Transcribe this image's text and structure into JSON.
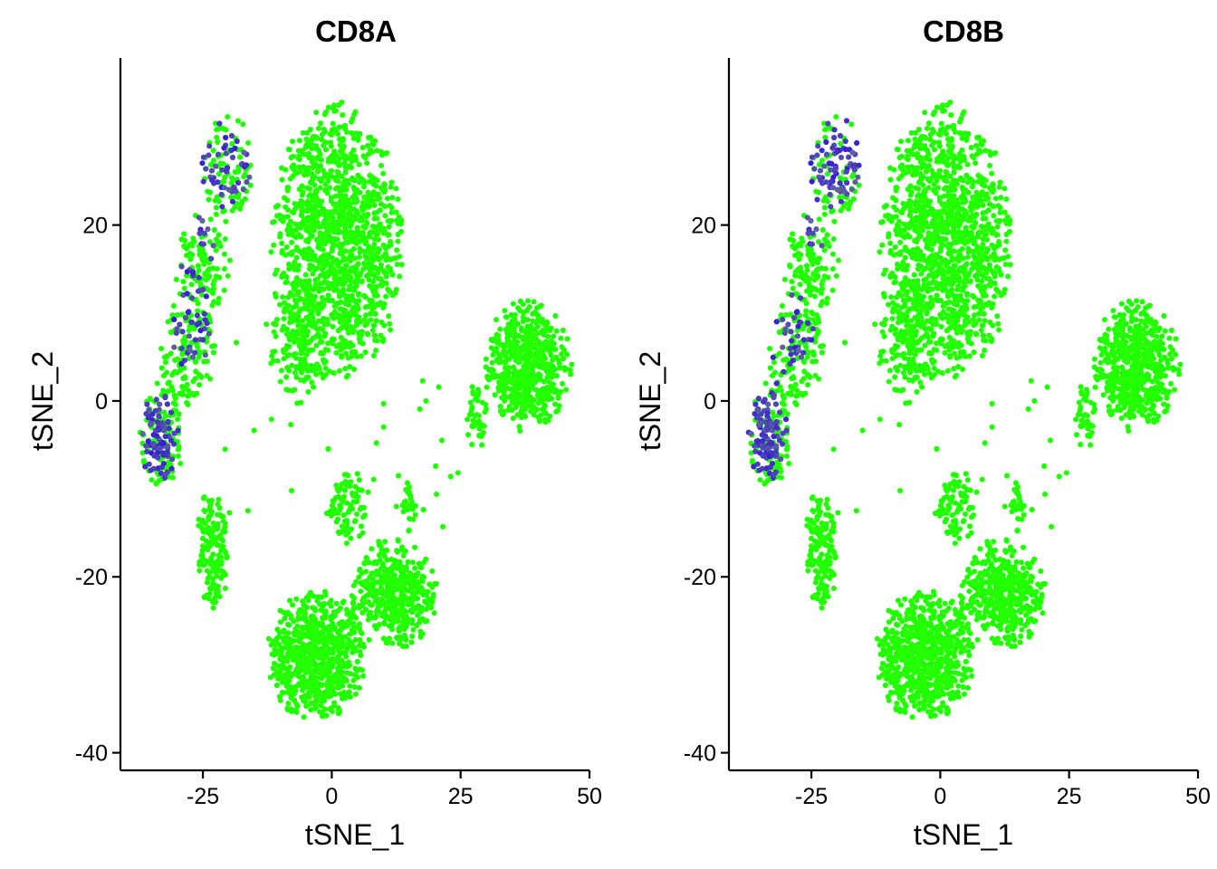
{
  "colors": {
    "low": "#22ff00",
    "mid": "#6a7a8a",
    "high": "#3010e0"
  },
  "chart_data": [
    {
      "type": "scatter",
      "title": "CD8A",
      "xlabel": "tSNE_1",
      "ylabel": "tSNE_2",
      "xlim": [
        -41,
        50
      ],
      "ylim": [
        -42,
        39
      ],
      "xticks": [
        -25,
        0,
        25,
        50
      ],
      "xtick_labels": [
        "-25",
        "0",
        "25",
        "50"
      ],
      "yticks": [
        -40,
        -20,
        0,
        20
      ],
      "ytick_labels": [
        "-40",
        "-20",
        "0",
        "20"
      ],
      "grid": false,
      "legend": "none",
      "expression_regions": [
        {
          "cx": -34,
          "cy": -4,
          "rx": 4,
          "ry": 6,
          "level": 0.6
        },
        {
          "cx": -27,
          "cy": 9,
          "rx": 4,
          "ry": 6,
          "level": 0.5
        },
        {
          "cx": -21,
          "cy": 28,
          "rx": 5,
          "ry": 5,
          "level": 0.55
        },
        {
          "cx": -24,
          "cy": 20,
          "rx": 3,
          "ry": 4,
          "level": 0.35
        }
      ]
    },
    {
      "type": "scatter",
      "title": "CD8B",
      "xlabel": "tSNE_1",
      "ylabel": "tSNE_2",
      "xlim": [
        -41,
        50
      ],
      "ylim": [
        -42,
        39
      ],
      "xticks": [
        -25,
        0,
        25,
        50
      ],
      "xtick_labels": [
        "-25",
        "0",
        "25",
        "50"
      ],
      "yticks": [
        -40,
        -20,
        0,
        20
      ],
      "ytick_labels": [
        "-40",
        "-20",
        "0",
        "20"
      ],
      "grid": false,
      "legend": "none",
      "expression_regions": [
        {
          "cx": -34,
          "cy": -3,
          "rx": 4,
          "ry": 6,
          "level": 0.75
        },
        {
          "cx": -29,
          "cy": 8,
          "rx": 4,
          "ry": 5,
          "level": 0.55
        },
        {
          "cx": -20,
          "cy": 28,
          "rx": 5,
          "ry": 5,
          "level": 0.85
        },
        {
          "cx": -24,
          "cy": 21,
          "rx": 3,
          "ry": 4,
          "level": 0.45
        }
      ]
    }
  ],
  "clusters": [
    {
      "cx": 1,
      "cy": 18,
      "rx": 12,
      "ry": 15,
      "n": 1300
    },
    {
      "cx": -6,
      "cy": 6,
      "rx": 6,
      "ry": 6,
      "n": 140
    },
    {
      "cx": -20,
      "cy": 26,
      "rx": 5,
      "ry": 6,
      "n": 130
    },
    {
      "cx": -25,
      "cy": 15,
      "rx": 5,
      "ry": 6,
      "n": 120
    },
    {
      "cx": -28,
      "cy": 6,
      "rx": 5,
      "ry": 6,
      "n": 150
    },
    {
      "cx": -33,
      "cy": -4,
      "rx": 4,
      "ry": 6,
      "n": 200
    },
    {
      "cx": -23,
      "cy": -17,
      "rx": 3,
      "ry": 7,
      "n": 150
    },
    {
      "cx": 38,
      "cy": 4,
      "rx": 8,
      "ry": 7,
      "n": 550
    },
    {
      "cx": 28,
      "cy": -2,
      "rx": 2,
      "ry": 4,
      "n": 40
    },
    {
      "cx": -3,
      "cy": -29,
      "rx": 9,
      "ry": 7,
      "n": 700
    },
    {
      "cx": 12,
      "cy": -22,
      "rx": 8,
      "ry": 6,
      "n": 450
    },
    {
      "cx": 3,
      "cy": -12,
      "rx": 4,
      "ry": 4,
      "n": 80
    },
    {
      "cx": 15,
      "cy": -12,
      "rx": 1.5,
      "ry": 3,
      "n": 25
    }
  ]
}
